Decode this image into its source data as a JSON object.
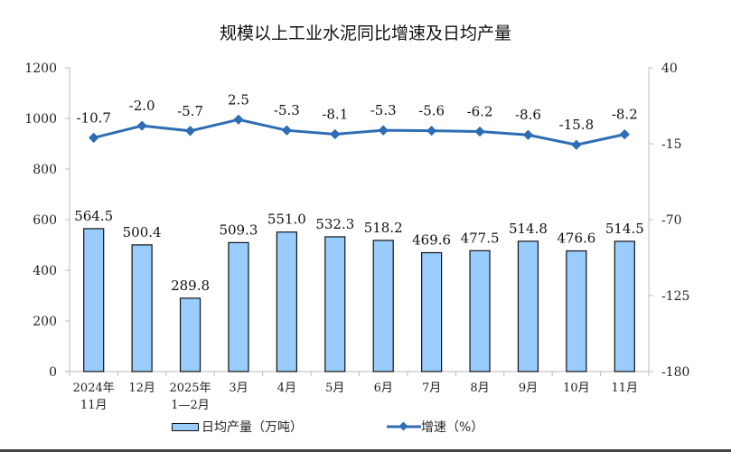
{
  "chart_data": {
    "type": "bar+line",
    "title": "规模以上工业水泥同比增速及日均产量",
    "categories": [
      "2024年\n11月",
      "12月",
      "2025年\n1—2月",
      "3月",
      "4月",
      "5月",
      "6月",
      "7月",
      "8月",
      "9月",
      "10月",
      "11月"
    ],
    "series": [
      {
        "name": "日均产量（万吨）",
        "type": "bar",
        "axis": "left",
        "color": "#99CCFF",
        "values": [
          564.5,
          500.4,
          289.8,
          509.3,
          551.0,
          532.3,
          518.2,
          469.6,
          477.5,
          514.8,
          476.6,
          514.5
        ]
      },
      {
        "name": "增速（%）",
        "type": "line",
        "axis": "right",
        "color": "#2E6DB4",
        "values": [
          -10.7,
          -2.0,
          -5.7,
          2.5,
          -5.3,
          -8.1,
          -5.3,
          -5.6,
          -6.2,
          -8.6,
          -15.8,
          -8.2
        ]
      }
    ],
    "left_axis": {
      "range": [
        0,
        1200
      ],
      "ticks": [
        0,
        200,
        400,
        600,
        800,
        1000,
        1200
      ]
    },
    "right_axis": {
      "range": [
        -180,
        40
      ],
      "ticks": [
        -180,
        -125,
        -70,
        -15,
        40
      ]
    },
    "grid": false,
    "legend": "bottom"
  }
}
